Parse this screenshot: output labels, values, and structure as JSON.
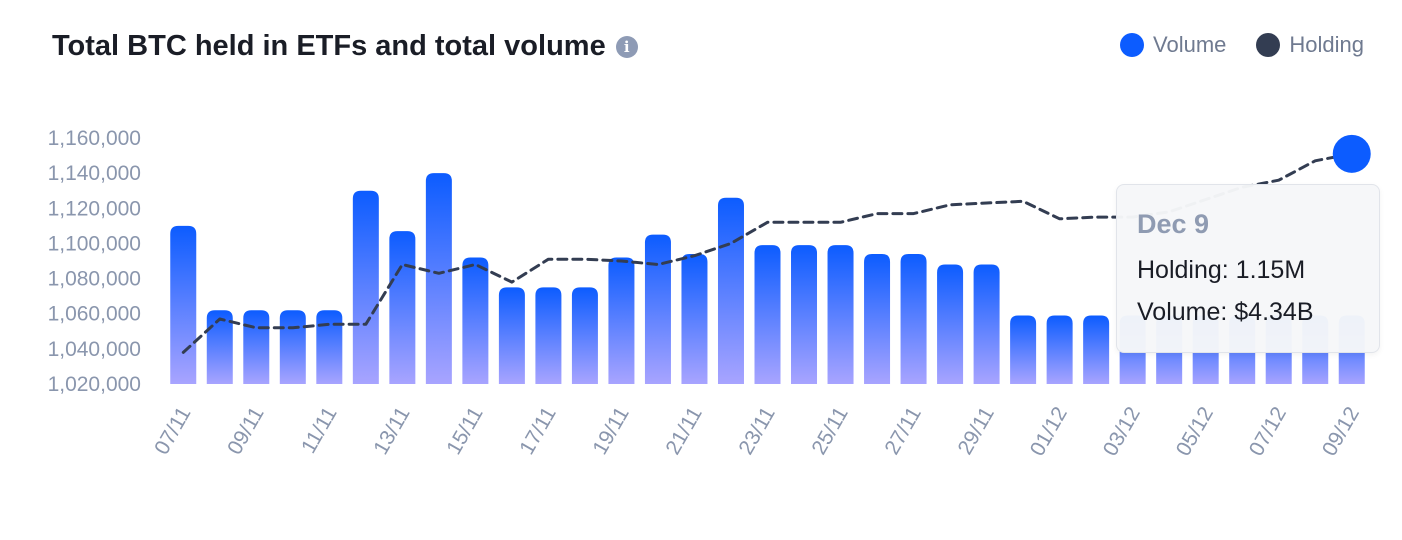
{
  "header": {
    "title": "Total BTC held in ETFs and total volume",
    "info_icon": "info-icon"
  },
  "legend": [
    {
      "label": "Volume",
      "color": "#0c5cff"
    },
    {
      "label": "Holding",
      "color": "#333d52"
    }
  ],
  "tooltip": {
    "date": "Dec 9",
    "lines": [
      "Holding: 1.15M",
      "Volume: $4.34B"
    ]
  },
  "chart_data": {
    "type": "bar",
    "title": "Total BTC held in ETFs and total volume",
    "x": [
      "07/11",
      "08/11",
      "09/11",
      "10/11",
      "11/11",
      "12/11",
      "13/11",
      "14/11",
      "15/11",
      "16/11",
      "17/11",
      "18/11",
      "19/11",
      "20/11",
      "21/11",
      "22/11",
      "23/11",
      "24/11",
      "25/11",
      "26/11",
      "27/11",
      "28/11",
      "29/11",
      "30/11",
      "01/12",
      "02/12",
      "03/12",
      "04/12",
      "05/12",
      "06/12",
      "07/12",
      "08/12",
      "09/12"
    ],
    "x_tick_labels": [
      "07/11",
      "09/11",
      "11/11",
      "13/11",
      "15/11",
      "17/11",
      "19/11",
      "21/11",
      "23/11",
      "25/11",
      "27/11",
      "29/11",
      "01/12",
      "03/12",
      "05/12",
      "07/12",
      "09/12"
    ],
    "y_ticks": [
      1020000,
      1040000,
      1060000,
      1080000,
      1100000,
      1120000,
      1140000,
      1160000
    ],
    "y_tick_labels": [
      "1,020,000",
      "1,040,000",
      "1,060,000",
      "1,080,000",
      "1,100,000",
      "1,120,000",
      "1,140,000",
      "1,160,000"
    ],
    "ylim": [
      1020000,
      1160000
    ],
    "grid": false,
    "legend_position": "top-right",
    "series": [
      {
        "name": "Volume",
        "type": "bar",
        "color_top": "#0c5cff",
        "color_bottom": "#a8a4ff",
        "values": [
          1110000,
          1062000,
          1062000,
          1062000,
          1062000,
          1130000,
          1107000,
          1140000,
          1092000,
          1075000,
          1075000,
          1075000,
          1092000,
          1105000,
          1094000,
          1126000,
          1099000,
          1099000,
          1099000,
          1094000,
          1094000,
          1088000,
          1088000,
          1059000,
          1059000,
          1059000,
          1059000,
          1059000,
          1059000,
          1059000,
          1059000,
          1059000,
          1059000
        ]
      },
      {
        "name": "Holding",
        "type": "line",
        "style": "dashed",
        "color": "#333d52",
        "values": [
          1038000,
          1057000,
          1052000,
          1052000,
          1054000,
          1054000,
          1088000,
          1083000,
          1088000,
          1078000,
          1091000,
          1091000,
          1090000,
          1088000,
          1093000,
          1100000,
          1112000,
          1112000,
          1112000,
          1117000,
          1117000,
          1122000,
          1123000,
          1124000,
          1114000,
          1115000,
          1115000,
          1118000,
          1125000,
          1132000,
          1136000,
          1147000,
          1151000
        ]
      }
    ],
    "highlight": {
      "category": "09/12",
      "value": 1151000,
      "color": "#0c5cff"
    }
  }
}
